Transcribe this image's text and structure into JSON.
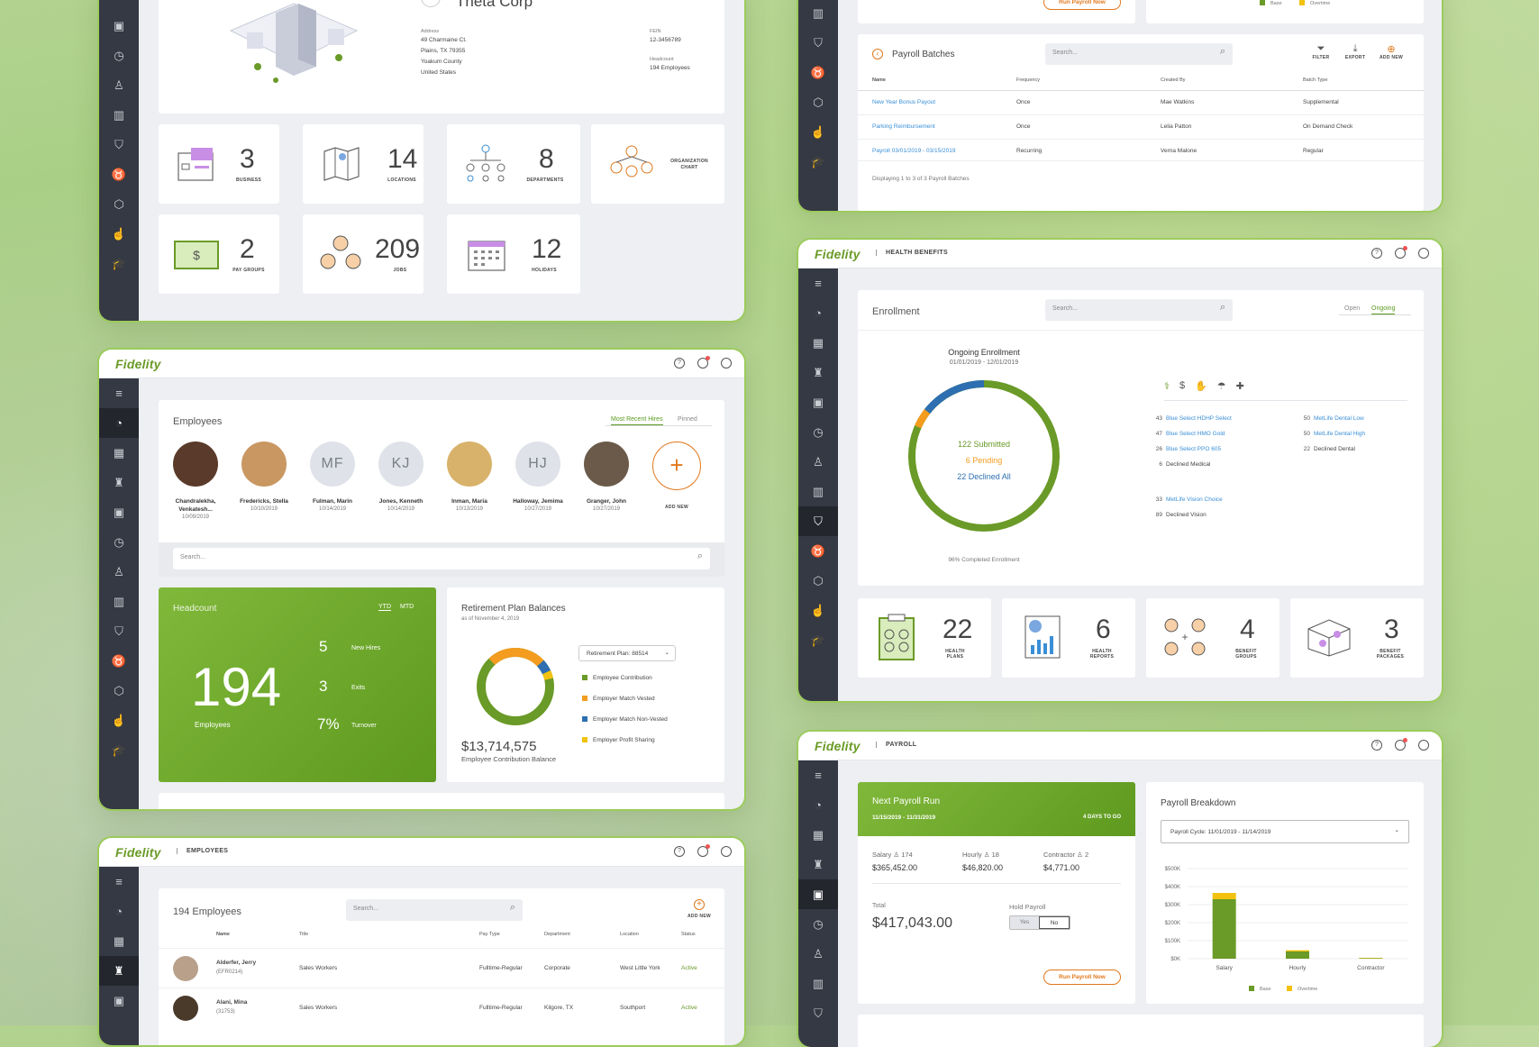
{
  "brand": "Fidelity",
  "company": {
    "name": "Theta Corp",
    "address_label": "Address",
    "address_lines": [
      "49 Charmaine Ct.",
      "Plains, TX 79355",
      "Yoakum County",
      "United States"
    ],
    "fein_label": "FEIN",
    "fein": "12-3456789",
    "headcount_label": "Headcount",
    "headcount": "194 Employees",
    "stats": [
      {
        "num": "3",
        "label": "BUSINESS"
      },
      {
        "num": "14",
        "label": "LOCATIONS"
      },
      {
        "num": "8",
        "label": "DEPARTMENTS"
      },
      {
        "num": "",
        "label": "ORGANIZATION CHART"
      },
      {
        "num": "2",
        "label": "PAY GROUPS"
      },
      {
        "num": "209",
        "label": "JOBS"
      },
      {
        "num": "12",
        "label": "HOLIDAYS"
      }
    ]
  },
  "dashboard": {
    "employees_title": "Employees",
    "tabs": [
      "Most Recent Hires",
      "Pinned"
    ],
    "people": [
      {
        "name": "Chandralekha, Venkatesh...",
        "date": "10/09/2019",
        "initials": ""
      },
      {
        "name": "Fredericks, Stella",
        "date": "10/10/2019",
        "initials": ""
      },
      {
        "name": "Fulman, Marin",
        "date": "10/14/2019",
        "initials": "MF"
      },
      {
        "name": "Jones, Kenneth",
        "date": "10/14/2019",
        "initials": "KJ"
      },
      {
        "name": "Inman, Maria",
        "date": "10/13/2019",
        "initials": ""
      },
      {
        "name": "Halloway, Jemima",
        "date": "10/27/2019",
        "initials": "HJ"
      },
      {
        "name": "Granger, John",
        "date": "10/27/2019",
        "initials": ""
      }
    ],
    "add_new": "ADD NEW",
    "search_placeholder": "Search...",
    "headcount": {
      "title": "Headcount",
      "tabs": [
        "YTD",
        "MTD"
      ],
      "value": "194",
      "label": "Employees",
      "items": [
        {
          "num": "5",
          "label": "New Hires"
        },
        {
          "num": "3",
          "label": "Exits"
        },
        {
          "num": "7%",
          "label": "Turnover"
        }
      ]
    },
    "retirement": {
      "title": "Retirement Plan Balances",
      "subtitle": "as of November 4, 2019",
      "select": "Retirement Plan: 88514",
      "amount": "$13,714,575",
      "amount_label": "Employee Contribution Balance",
      "legend": [
        {
          "label": "Employee Contribution",
          "color": "#6a9a27"
        },
        {
          "label": "Employer Match Vested",
          "color": "#f39c1f"
        },
        {
          "label": "Employer Match Non-Vested",
          "color": "#2d6fb0"
        },
        {
          "label": "Employer Profit Sharing",
          "color": "#f2c20e"
        }
      ]
    }
  },
  "employees": {
    "section": "EMPLOYEES",
    "title": "194 Employees",
    "search_placeholder": "Search...",
    "add_new": "ADD NEW",
    "columns": [
      "Name",
      "Title",
      "Pay Type",
      "Department",
      "Location",
      "Status"
    ],
    "rows": [
      [
        "Alderfer, Jerry",
        "(EFR0214)",
        "Sales Workers",
        "Fulltime-Regular",
        "Corporate",
        "West Little York",
        "Active"
      ],
      [
        "Alani, Mina",
        "(31753)",
        "Sales Workers",
        "Fulltime-Regular",
        "Kilgore, TX",
        "Southport",
        "Active"
      ]
    ]
  },
  "payroll_batches": {
    "title": "Payroll Batches",
    "search_placeholder": "Search...",
    "run_btn": "Run Payroll Now",
    "legend": [
      "Base",
      "Overtime"
    ],
    "actions": [
      "FILTER",
      "EXPORT",
      "ADD NEW"
    ],
    "columns": [
      "Name",
      "Frequency",
      "Created By",
      "Batch Type"
    ],
    "rows": [
      [
        "New Year Bonus Payout",
        "Once",
        "Mae Watkins",
        "Supplemental"
      ],
      [
        "Parking Reimbursement",
        "Once",
        "Lelia Patton",
        "On Demand Check"
      ],
      [
        "Payroll 03/01/2019 - 03/15/2019",
        "Recurring",
        "Verna Malone",
        "Regular"
      ]
    ],
    "footer": "Displaying 1 to 3 of 3 Payroll Batches"
  },
  "health": {
    "section": "HEALTH BENEFITS",
    "title": "Enrollment",
    "search_placeholder": "Search...",
    "tabs": [
      "Open",
      "Ongoing"
    ],
    "chart_title": "Ongoing Enrollment",
    "range": "01/01/2019 - 12/01/2019",
    "submitted": "122 Submitted",
    "pending": "6 Pending",
    "declined": "22 Declined All",
    "completed": "96% Completed Enrollment",
    "plans_left": [
      {
        "n": "43",
        "label": "Blue Select HDHP Select",
        "link": true
      },
      {
        "n": "47",
        "label": "Blue Select HMO Gold",
        "link": true
      },
      {
        "n": "26",
        "label": "Blue Select PPO 605",
        "link": true
      },
      {
        "n": "6",
        "label": "Declined Medical",
        "link": false
      },
      {
        "n": "33",
        "label": "MetLife Vision Choice",
        "link": true
      },
      {
        "n": "89",
        "label": "Declined Vision",
        "link": false
      }
    ],
    "plans_right": [
      {
        "n": "50",
        "label": "MetLife Dental Low",
        "link": true
      },
      {
        "n": "50",
        "label": "MetLife Dental High",
        "link": true
      },
      {
        "n": "22",
        "label": "Declined Dental",
        "link": false
      }
    ],
    "stats": [
      {
        "num": "22",
        "label": "HEALTH PLANS"
      },
      {
        "num": "6",
        "label": "HEALTH REPORTS"
      },
      {
        "num": "4",
        "label": "BENEFIT GROUPS"
      },
      {
        "num": "3",
        "label": "BENEFIT PACKAGES"
      }
    ]
  },
  "payroll": {
    "section": "PAYROLL",
    "next_title": "Next Payroll Run",
    "next_dates": "11/15/2019 - 11/31/2019",
    "days": "4 DAYS TO GO",
    "salary_label": "Salary",
    "salary_count": "174",
    "salary_amount": "$365,452.00",
    "hourly_label": "Hourly",
    "hourly_count": "18",
    "hourly_amount": "$46,820.00",
    "contractor_label": "Contractor",
    "contractor_count": "2",
    "contractor_amount": "$4,771.00",
    "total_label": "Total",
    "total": "$417,043.00",
    "hold_label": "Hold Payroll",
    "hold_yes": "Yes",
    "hold_no": "No",
    "run_btn": "Run Payroll Now",
    "breakdown_title": "Payroll Breakdown",
    "cycle": "Payroll Cycle: 11/01/2019 - 11/14/2019"
  },
  "chart_data": {
    "type": "bar",
    "stacked": true,
    "categories": [
      "Salary",
      "Hourly",
      "Contractor"
    ],
    "series": [
      {
        "name": "Base",
        "values": [
          330000,
          40000,
          4000
        ]
      },
      {
        "name": "Overtime",
        "values": [
          35000,
          7000,
          800
        ]
      }
    ],
    "ylim": [
      0,
      500000
    ],
    "yticks": [
      "$0K",
      "$100K",
      "$200K",
      "$300K",
      "$400K",
      "$500K"
    ],
    "colors": [
      "#6a9a27",
      "#f2c20e"
    ],
    "legend": "bottom"
  }
}
